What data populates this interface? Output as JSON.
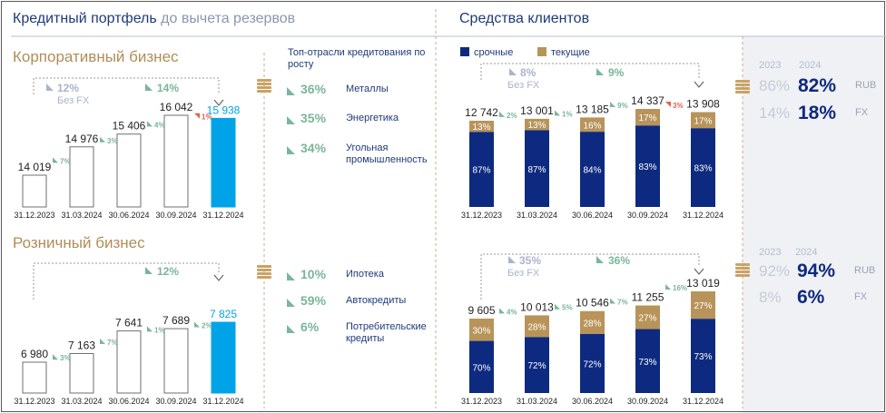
{
  "header": {
    "left_title_main": "Кредитный портфель",
    "left_title_rest": " до вычета резервов",
    "right_title": "Средства клиентов"
  },
  "corporate": {
    "title": "Корпоративный бизнес",
    "bracket_growth": "12%",
    "bracket_note": "Без FX",
    "bracket_growth_fx": "14%",
    "chart_data": {
      "type": "bar",
      "categories": [
        "31.12.2023",
        "31.03.2024",
        "30.06.2024",
        "30.09.2024",
        "31.12.2024"
      ],
      "values": [
        14019,
        14976,
        15406,
        16042,
        15938
      ],
      "value_labels": [
        "14 019",
        "14 976",
        "15 406",
        "16 042",
        "15 938"
      ],
      "changes": [
        "7%",
        "3%",
        "4%",
        "1%"
      ],
      "change_dirs": [
        "up",
        "up",
        "up",
        "down"
      ],
      "ylim": [
        0,
        17000
      ]
    }
  },
  "retail": {
    "title": "Розничный бизнес",
    "bracket_growth": "12%",
    "chart_data": {
      "type": "bar",
      "categories": [
        "31.12.2023",
        "31.03.2024",
        "30.06.2024",
        "30.09.2024",
        "31.12.2024"
      ],
      "values": [
        6980,
        7163,
        7641,
        7689,
        7825
      ],
      "value_labels": [
        "6 980",
        "7 163",
        "7 641",
        "7 689",
        "7 825"
      ],
      "changes": [
        "3%",
        "7%",
        "1%",
        "2%"
      ],
      "change_dirs": [
        "up",
        "up",
        "up",
        "up"
      ],
      "ylim": [
        0,
        8500
      ]
    }
  },
  "industries": {
    "heading": "Топ-отрасли кредитования по росту",
    "corporate_items": [
      {
        "pct": "36%",
        "name": "Металлы"
      },
      {
        "pct": "35%",
        "name": "Энергетика"
      },
      {
        "pct": "34%",
        "name": "Угольная промышленность"
      }
    ],
    "retail_items": [
      {
        "pct": "10%",
        "name": "Ипотека"
      },
      {
        "pct": "59%",
        "name": "Автокредиты"
      },
      {
        "pct": "6%",
        "name": "Потребительские кредиты"
      }
    ]
  },
  "clients": {
    "legend": [
      {
        "name": "срочные",
        "color": "#0d2a80"
      },
      {
        "name": "текущие",
        "color": "#b8945a"
      }
    ],
    "top": {
      "bracket_growth": "8%",
      "bracket_note": "Без FX",
      "bracket_growth_fx": "9%",
      "chart_data": {
        "type": "bar",
        "categories": [
          "31.12.2023",
          "31.03.2024",
          "30.06.2024",
          "30.09.2024",
          "31.12.2024"
        ],
        "totals": [
          12742,
          13001,
          13185,
          14337,
          13908
        ],
        "total_labels": [
          "12 742",
          "13 001",
          "13 185",
          "14 337",
          "13 908"
        ],
        "series": [
          {
            "name": "срочные",
            "values": [
              87,
              87,
              84,
              83,
              83
            ]
          },
          {
            "name": "текущие",
            "values": [
              13,
              13,
              16,
              17,
              17
            ]
          }
        ],
        "changes": [
          "2%",
          "1%",
          "9%",
          "3%"
        ],
        "change_dirs": [
          "up",
          "up",
          "up",
          "down"
        ],
        "ylim": [
          0,
          14337
        ]
      },
      "share": {
        "years": [
          "2023",
          "2024"
        ],
        "rows": [
          {
            "prev": "86%",
            "cur": "82%",
            "label": "RUB"
          },
          {
            "prev": "14%",
            "cur": "18%",
            "label": "FX"
          }
        ]
      }
    },
    "bottom": {
      "bracket_growth": "35%",
      "bracket_note": "Без FX",
      "bracket_growth_fx": "36%",
      "chart_data": {
        "type": "bar",
        "categories": [
          "31.12.2023",
          "31.03.2024",
          "30.06.2024",
          "30.09.2024",
          "31.12.2024"
        ],
        "totals": [
          9605,
          10013,
          10546,
          11255,
          13019
        ],
        "total_labels": [
          "9 605",
          "10 013",
          "10 546",
          "11 255",
          "13 019"
        ],
        "series": [
          {
            "name": "срочные",
            "values": [
              70,
              72,
              72,
              73,
              73
            ]
          },
          {
            "name": "текущие",
            "values": [
              30,
              28,
              28,
              27,
              27
            ]
          }
        ],
        "changes": [
          "4%",
          "5%",
          "7%",
          "16%"
        ],
        "change_dirs": [
          "up",
          "up",
          "up",
          "up"
        ],
        "ylim": [
          0,
          13019
        ]
      },
      "share": {
        "years": [
          "2023",
          "2024"
        ],
        "rows": [
          {
            "prev": "92%",
            "cur": "94%",
            "label": "RUB"
          },
          {
            "prev": "8%",
            "cur": "6%",
            "label": "FX"
          }
        ]
      }
    }
  },
  "colors": {
    "navy": "#0d2a80",
    "gold": "#b8945a",
    "cyan": "#00a3e8",
    "green": "#7bb59a",
    "red": "#e2624a",
    "gray": "#8a96b0"
  }
}
